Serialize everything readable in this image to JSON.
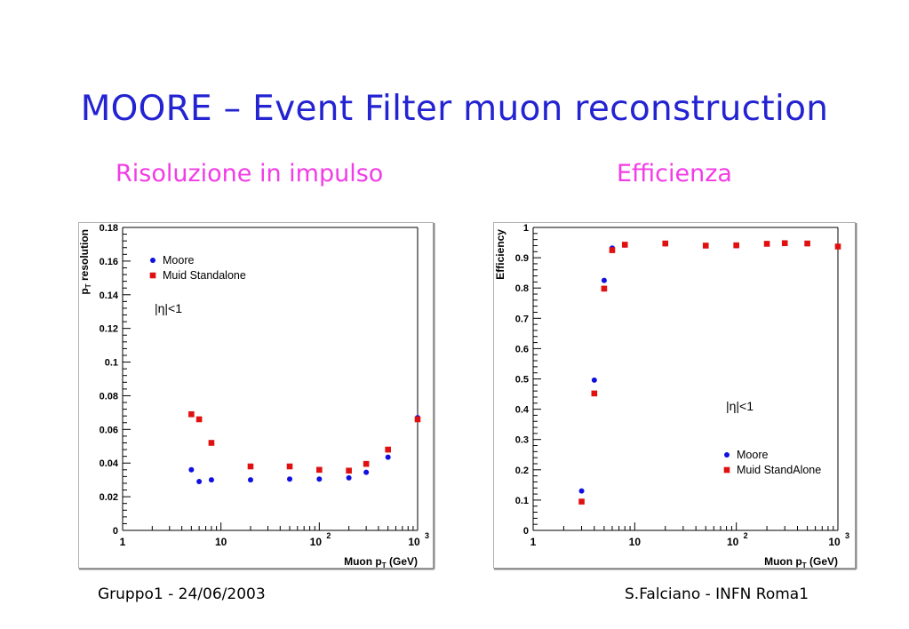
{
  "slide": {
    "title": "MOORE – Event Filter muon reconstruction",
    "left_subtitle": "Risoluzione in impulso",
    "right_subtitle": "Efficienza",
    "footer_left": "Gruppo1 - 24/06/2003",
    "footer_right": "S.Falciano - INFN Roma1"
  },
  "colors": {
    "title": "#2323d2",
    "subtitle": "#f23ce6",
    "moore": "#1010e0",
    "muid": "#e01010"
  },
  "chart_data": [
    {
      "type": "scatter",
      "xscale": "log",
      "xlim": [
        1,
        1000
      ],
      "ylim": [
        0,
        0.18
      ],
      "xlabel_main": "Muon p",
      "xlabel_sub": "T",
      "xlabel_unit": " (GeV)",
      "ylabel_main": "p",
      "ylabel_sub": "T",
      "ylabel_rest": " resolution",
      "x_ticks": [
        "1",
        "10",
        "10",
        "10"
      ],
      "x_tick_sups": [
        "",
        "",
        "2",
        "3"
      ],
      "y_ticks": [
        "0",
        "0.02",
        "0.04",
        "0.06",
        "0.08",
        "0.1",
        "0.12",
        "0.14",
        "0.16",
        "0.18"
      ],
      "annotation": "|η|<1",
      "legend_position": "top-left",
      "series": [
        {
          "name": "Moore",
          "marker": "circle",
          "x": [
            5,
            6,
            8,
            20,
            50,
            100,
            200,
            300,
            500,
            1000
          ],
          "y": [
            0.036,
            0.029,
            0.03,
            0.03,
            0.0305,
            0.0305,
            0.0312,
            0.0345,
            0.0435,
            0.067
          ]
        },
        {
          "name": "Muid Standalone",
          "marker": "square",
          "x": [
            5,
            6,
            8,
            20,
            50,
            100,
            200,
            300,
            500,
            1000
          ],
          "y": [
            0.069,
            0.066,
            0.052,
            0.038,
            0.038,
            0.036,
            0.0355,
            0.0395,
            0.048,
            0.066
          ]
        }
      ]
    },
    {
      "type": "scatter",
      "xscale": "log",
      "xlim": [
        1,
        1000
      ],
      "ylim": [
        0,
        1
      ],
      "xlabel_main": "Muon p",
      "xlabel_sub": "T",
      "xlabel_unit": " (GeV)",
      "ylabel": "Efficiency",
      "x_ticks": [
        "1",
        "10",
        "10",
        "10"
      ],
      "x_tick_sups": [
        "",
        "",
        "2",
        "3"
      ],
      "y_ticks": [
        "0",
        "0.1",
        "0.2",
        "0.3",
        "0.4",
        "0.5",
        "0.6",
        "0.7",
        "0.8",
        "0.9",
        "1"
      ],
      "annotation": "|η|<1",
      "legend_position": "bottom-right",
      "series": [
        {
          "name": "Moore",
          "marker": "circle",
          "x": [
            3,
            4,
            5,
            6,
            8,
            20,
            50,
            100,
            200,
            300,
            500,
            1000
          ],
          "y": [
            0.13,
            0.496,
            0.825,
            0.932,
            0.942,
            0.946,
            0.94,
            0.94,
            0.946,
            0.948,
            0.947,
            0.937
          ]
        },
        {
          "name": "Muid StandAlone",
          "marker": "square",
          "x": [
            3,
            4,
            5,
            6,
            8,
            20,
            50,
            100,
            200,
            300,
            500,
            1000
          ],
          "y": [
            0.095,
            0.452,
            0.798,
            0.925,
            0.943,
            0.947,
            0.94,
            0.941,
            0.946,
            0.948,
            0.947,
            0.937
          ]
        }
      ]
    }
  ]
}
